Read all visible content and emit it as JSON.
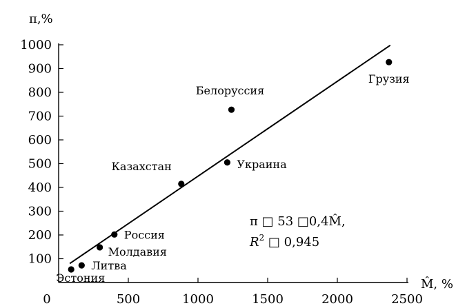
{
  "chart_data": {
    "type": "scatter",
    "ylabel": "π,%",
    "xlabel": "M̂, %",
    "xlim": [
      0,
      2500
    ],
    "ylim": [
      0,
      1000
    ],
    "x_ticks": [
      0,
      500,
      1000,
      1500,
      2000,
      2500
    ],
    "y_ticks": [
      100,
      200,
      300,
      400,
      500,
      600,
      700,
      800,
      900,
      1000
    ],
    "grid": false,
    "points": [
      {
        "label": "Эстония",
        "x": 90,
        "y": 55
      },
      {
        "label": "Литва",
        "x": 165,
        "y": 72
      },
      {
        "label": "Молдавия",
        "x": 295,
        "y": 148
      },
      {
        "label": "Россия",
        "x": 400,
        "y": 202
      },
      {
        "label": "Казахстан",
        "x": 880,
        "y": 415
      },
      {
        "label": "Украина",
        "x": 1210,
        "y": 505
      },
      {
        "label": "Белоруссия",
        "x": 1240,
        "y": 727
      },
      {
        "label": "Грузия",
        "x": 2370,
        "y": 927
      }
    ],
    "trendline": {
      "from": [
        80,
        80
      ],
      "to": [
        2380,
        998
      ]
    },
    "annotation": {
      "line1": "π □ 53 □0,4M̂,",
      "line2_prefix": "R",
      "line2_sup": "2",
      "line2_rest": " □ 0,945"
    }
  }
}
